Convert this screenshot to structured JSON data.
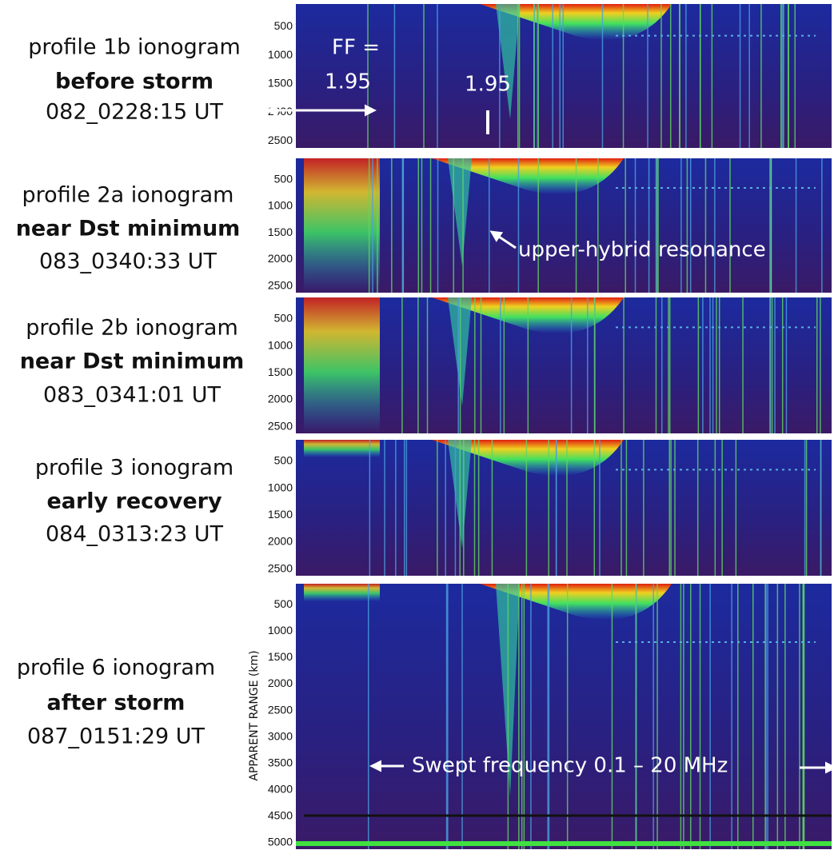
{
  "panels": [
    {
      "profile": "profile 1b ionogram",
      "condition": "before storm",
      "time": "082_0228:15 UT",
      "yticks": [
        500,
        1000,
        1500,
        2000,
        2500
      ],
      "annotations": [
        "FF =",
        "1.95",
        "1.95"
      ]
    },
    {
      "profile": "profile 2a ionogram",
      "condition": "near Dst minimum",
      "time": "083_0340:33 UT",
      "yticks": [
        500,
        1000,
        1500,
        2000,
        2500
      ],
      "annotations": [
        "upper-hybrid resonance"
      ]
    },
    {
      "profile": "profile 2b ionogram",
      "condition": "near Dst minimum",
      "time": "083_0341:01 UT",
      "yticks": [
        500,
        1000,
        1500,
        2000,
        2500
      ],
      "annotations": []
    },
    {
      "profile": "profile 3 ionogram",
      "condition": "early recovery",
      "time": "084_0313:23 UT",
      "yticks": [
        500,
        1000,
        1500,
        2000,
        2500
      ],
      "annotations": []
    },
    {
      "profile": "profile 6 ionogram",
      "condition": "after storm",
      "time": "087_0151:29 UT",
      "yticks": [
        500,
        1000,
        1500,
        2000,
        2500,
        3000,
        3500,
        4000,
        4500,
        5000
      ],
      "annotations": [
        "Swept frequency 0.1 – 20 MHz"
      ],
      "axis_label": "APPARENT RANGE (km)"
    }
  ]
}
